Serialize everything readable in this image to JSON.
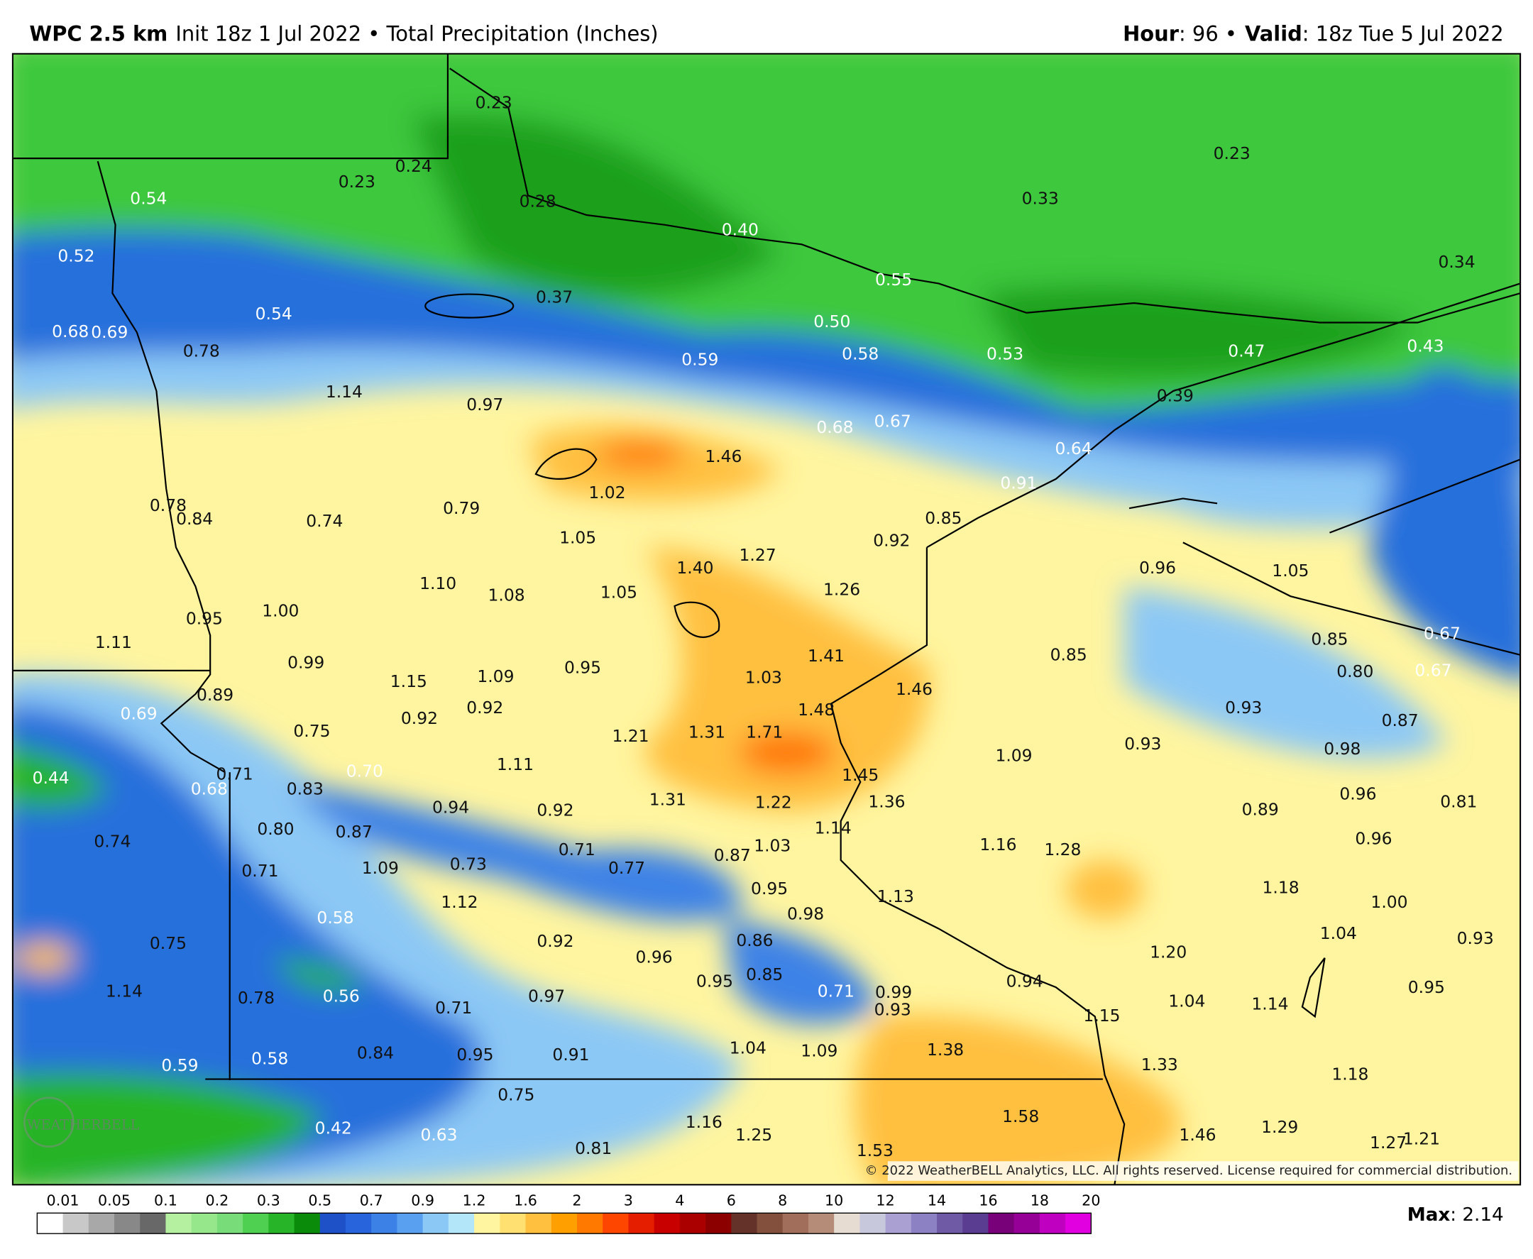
{
  "header": {
    "model": "WPC 2.5 km",
    "subtitle": "Init 18z 1 Jul 2022 • Total Precipitation (Inches)",
    "hour_label": "Hour",
    "hour_value": ": 96 •",
    "valid_label": "Valid",
    "valid_value": ": 18z Tue 5 Jul 2022"
  },
  "map": {
    "labels": [
      "0.23",
      "0.24",
      "0.23",
      "0.28",
      "0.54",
      "0.52",
      "0.40",
      "0.23",
      "0.33",
      "0.34",
      "0.37",
      "0.54",
      "0.55",
      "0.50",
      "0.68",
      "0.69",
      "0.78",
      "0.59",
      "0.58",
      "0.53",
      "0.47",
      "0.43",
      "1.14",
      "0.97",
      "0.68",
      "0.67",
      "0.39",
      "1.46",
      "0.64",
      "1.02",
      "0.91",
      "0.78",
      "0.84",
      "0.74",
      "0.79",
      "0.85",
      "1.05",
      "0.92",
      "1.27",
      "1.40",
      "0.96",
      "1.05",
      "1.10",
      "1.08",
      "1.05",
      "1.26",
      "0.95",
      "1.00",
      "1.11",
      "0.85",
      "0.85",
      "0.67",
      "0.99",
      "1.41",
      "1.15",
      "1.09",
      "0.95",
      "1.03",
      "0.80",
      "0.67",
      "0.89",
      "1.46",
      "0.69",
      "0.92",
      "0.92",
      "1.48",
      "0.93",
      "0.87",
      "0.75",
      "1.21",
      "1.31",
      "1.71",
      "0.93",
      "1.09",
      "0.98",
      "1.11",
      "0.44",
      "0.71",
      "0.68",
      "0.70",
      "0.83",
      "1.45",
      "0.96",
      "0.81",
      "0.94",
      "0.92",
      "1.31",
      "1.22",
      "1.36",
      "0.89",
      "0.80",
      "0.87",
      "1.14",
      "0.74",
      "0.96",
      "0.71",
      "0.87",
      "1.03",
      "1.16",
      "1.28",
      "0.71",
      "1.09",
      "0.73",
      "0.77",
      "0.95",
      "1.13",
      "1.18",
      "1.12",
      "1.00",
      "0.58",
      "0.98",
      "0.75",
      "0.92",
      "0.86",
      "1.04",
      "0.93",
      "0.96",
      "1.20",
      "0.95",
      "0.85",
      "0.94",
      "1.14",
      "0.78",
      "0.56",
      "0.97",
      "0.71",
      "0.71",
      "0.99",
      "0.93",
      "1.04",
      "1.14",
      "0.95",
      "1.15",
      "1.04",
      "1.09",
      "1.38",
      "0.84",
      "0.95",
      "0.91",
      "0.59",
      "0.58",
      "1.33",
      "1.18",
      "0.75",
      "1.58",
      "0.42",
      "0.63",
      "1.16",
      "1.25",
      "1.46",
      "1.29",
      "1.21",
      "1.27",
      "0.81",
      "1.53"
    ],
    "copyright": "© 2022 WeatherBELL Analytics, LLC. All rights reserved. License required for commercial distribution.",
    "watermark": "WEATHERBELL"
  },
  "colorbar": {
    "ticks": [
      0.01,
      0.05,
      0.1,
      0.2,
      0.3,
      0.5,
      0.7,
      0.9,
      1.2,
      1.6,
      2,
      3,
      4,
      6,
      8,
      10,
      12,
      14,
      16,
      18,
      20
    ],
    "colors": [
      "#ffffff",
      "#c8c8c8",
      "#a8a8a8",
      "#888888",
      "#686868",
      "#b4f0a0",
      "#96e68c",
      "#78dc78",
      "#50d050",
      "#28b428",
      "#0a8c0a",
      "#1e50c8",
      "#2864dc",
      "#3c82e6",
      "#5aa0f0",
      "#8cc8f5",
      "#b4e6fa",
      "#fff5a0",
      "#ffe070",
      "#ffc040",
      "#ffa000",
      "#ff7800",
      "#ff4600",
      "#e61e00",
      "#c80000",
      "#aa0000",
      "#8c0000",
      "#643228",
      "#82503c",
      "#a06e5a",
      "#b48c78",
      "#e6dcd2",
      "#c8c8dc",
      "#aaa0d2",
      "#8c82c3",
      "#6e5aa5",
      "#5a3c91",
      "#780078",
      "#960096",
      "#c000c0",
      "#e000e0"
    ],
    "max_label": "Max",
    "max_value": ": 2.14"
  }
}
